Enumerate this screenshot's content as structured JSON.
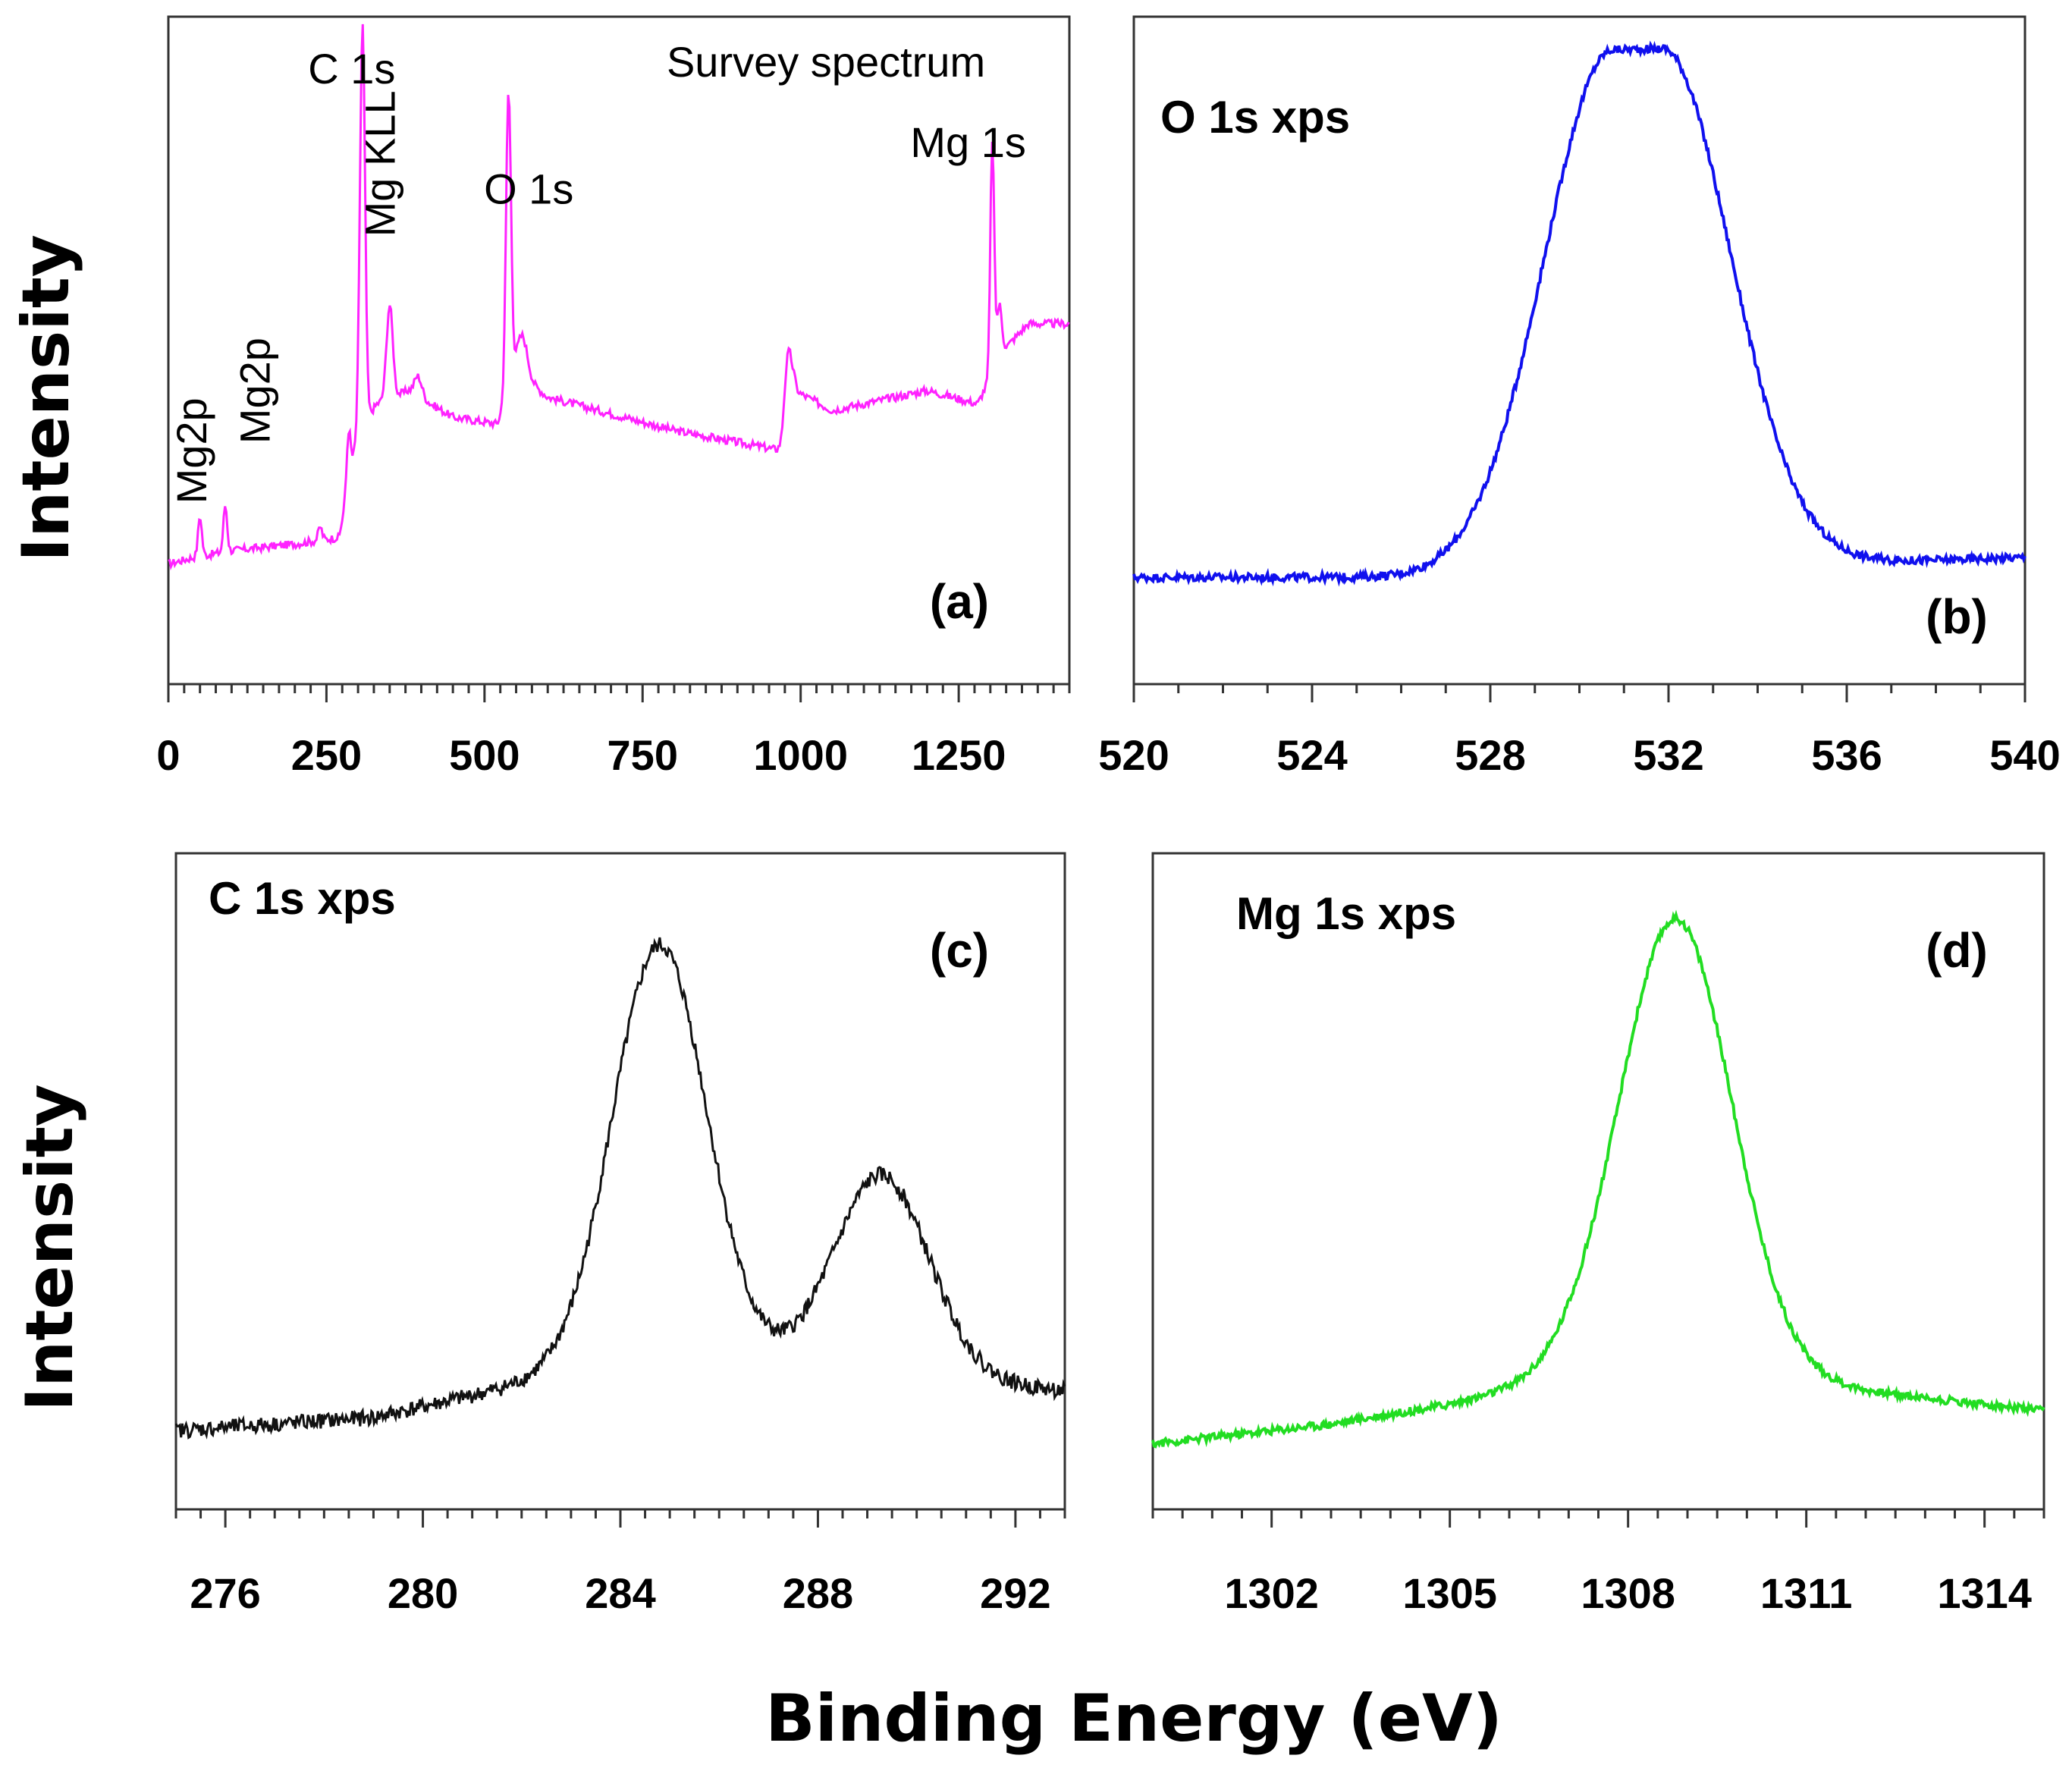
{
  "figure": {
    "y_label": "Intensity",
    "x_label": "Binding Energy (eV)"
  },
  "chart_data": [
    {
      "type": "line",
      "panel": "(a)",
      "title": "Survey spectrum",
      "color": "#ff22ff",
      "xlim": [
        0,
        1425
      ],
      "ylim": [
        0,
        100
      ],
      "xticks": [
        0,
        250,
        500,
        750,
        1000,
        1250
      ],
      "xtick_labels": [
        "0",
        "250",
        "500",
        "750",
        "1000",
        "1250"
      ],
      "baseline_points": [
        [
          0,
          18
        ],
        [
          40,
          19
        ],
        [
          100,
          20
        ],
        [
          200,
          21
        ],
        [
          270,
          22
        ],
        [
          300,
          38
        ],
        [
          330,
          42
        ],
        [
          380,
          44
        ],
        [
          450,
          40
        ],
        [
          520,
          39
        ],
        [
          550,
          47
        ],
        [
          600,
          43
        ],
        [
          800,
          38
        ],
        [
          970,
          35
        ],
        [
          990,
          44
        ],
        [
          1050,
          41
        ],
        [
          1200,
          44
        ],
        [
          1280,
          42
        ],
        [
          1320,
          50
        ],
        [
          1360,
          54
        ]
      ],
      "peaks": [
        {
          "x": 50,
          "h": 6,
          "w": 3
        },
        {
          "x": 90,
          "h": 7,
          "w": 3
        },
        {
          "x": 240,
          "h": 2,
          "w": 3
        },
        {
          "x": 285,
          "h": 8,
          "w": 3
        },
        {
          "x": 307,
          "h": 60,
          "w": 4
        },
        {
          "x": 350,
          "h": 14,
          "w": 5
        },
        {
          "x": 395,
          "h": 3,
          "w": 6
        },
        {
          "x": 538,
          "h": 45,
          "w": 4
        },
        {
          "x": 560,
          "h": 6,
          "w": 8
        },
        {
          "x": 980,
          "h": 10,
          "w": 6
        },
        {
          "x": 1303,
          "h": 35,
          "w": 3
        },
        {
          "x": 1314,
          "h": 8,
          "w": 4
        }
      ],
      "annotations": [
        {
          "text": "C 1s",
          "x": 290,
          "y": 90,
          "rotate": false,
          "bold": false
        },
        {
          "text": "Mg KLL",
          "x": 358,
          "y": 67,
          "rotate": true,
          "bold": false
        },
        {
          "text": "O 1s",
          "x": 570,
          "y": 72,
          "rotate": false,
          "bold": false
        },
        {
          "text": "Mg 1s",
          "x": 1265,
          "y": 79,
          "rotate": false,
          "bold": false
        },
        {
          "text": "Mg2p",
          "x": 60,
          "y": 27,
          "rotate": true,
          "bold": false
        },
        {
          "text": "Mg2p",
          "x": 160,
          "y": 36,
          "rotate": true,
          "bold": false
        }
      ],
      "label_title_pos": {
        "x": 1040,
        "y": 91
      }
    },
    {
      "type": "line",
      "panel": "(b)",
      "title": "O 1s xps",
      "color": "#1010ee",
      "xlim": [
        520,
        540
      ],
      "ylim": [
        0,
        100
      ],
      "xticks": [
        520,
        524,
        528,
        532,
        536,
        540
      ],
      "xtick_labels": [
        "520",
        "524",
        "528",
        "532",
        "536",
        "540"
      ],
      "baseline_points": [
        [
          520,
          16
        ],
        [
          526,
          16
        ],
        [
          540,
          19
        ]
      ],
      "peaks": [
        {
          "x": 531.3,
          "h": 78,
          "w": 1.6
        }
      ],
      "plateau": true,
      "annotations": []
    },
    {
      "type": "line",
      "panel": "(c)",
      "title": "C 1s xps",
      "color": "#111111",
      "xlim": [
        275,
        293
      ],
      "ylim": [
        0,
        100
      ],
      "xticks": [
        276,
        280,
        284,
        288,
        292
      ],
      "xtick_labels": [
        "276",
        "280",
        "284",
        "288",
        "292"
      ],
      "baseline_points": [
        [
          275,
          12
        ],
        [
          279,
          14
        ],
        [
          282,
          19
        ],
        [
          284,
          22
        ],
        [
          288,
          22
        ],
        [
          293,
          18
        ]
      ],
      "peaks": [
        {
          "x": 284.8,
          "h": 64,
          "w": 0.95
        },
        {
          "x": 289.3,
          "h": 30,
          "w": 0.95
        }
      ],
      "annotations": []
    },
    {
      "type": "line",
      "panel": "(d)",
      "title": "Mg 1s xps",
      "color": "#22dd22",
      "xlim": [
        1300,
        1315
      ],
      "ylim": [
        0,
        100
      ],
      "xticks": [
        1302,
        1305,
        1308,
        1311,
        1314
      ],
      "xtick_labels": [
        "1302",
        "1305",
        "1308",
        "1311",
        "1314"
      ],
      "baseline_points": [
        [
          1300,
          10
        ],
        [
          1303,
          13
        ],
        [
          1305,
          16
        ],
        [
          1307,
          20
        ],
        [
          1309,
          20
        ],
        [
          1311,
          19
        ],
        [
          1315,
          15
        ]
      ],
      "peaks": [
        {
          "x": 1308.8,
          "h": 70,
          "w": 0.95
        }
      ],
      "annotations": []
    }
  ]
}
